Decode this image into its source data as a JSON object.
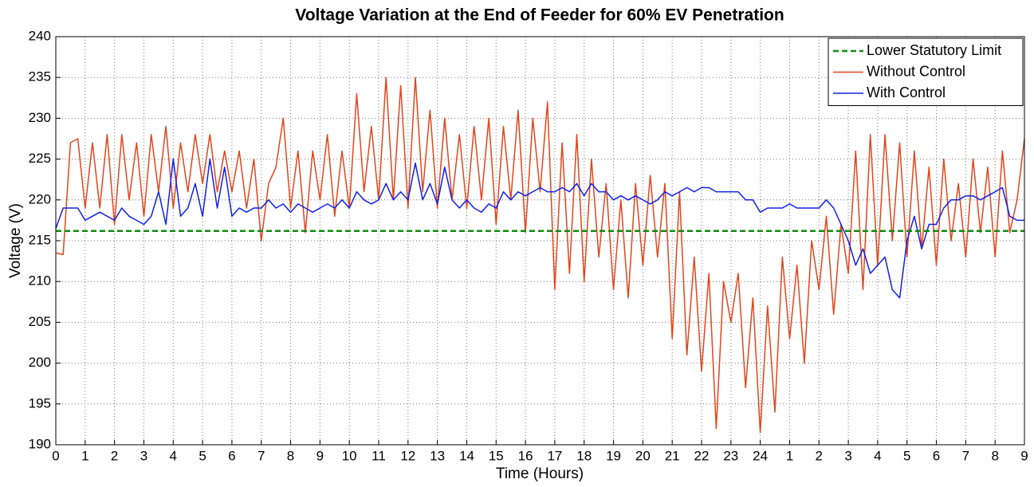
{
  "chart_data": {
    "type": "line",
    "title": "Voltage Variation at the End of Feeder for 60% EV Penetration",
    "x_label": "Time (Hours)",
    "y_label": "Voltage (V)",
    "xlim": [
      0,
      33
    ],
    "ylim": [
      190,
      240
    ],
    "xticks": [
      0,
      1,
      2,
      3,
      4,
      5,
      6,
      7,
      8,
      9,
      10,
      11,
      12,
      13,
      14,
      15,
      16,
      17,
      18,
      19,
      20,
      21,
      22,
      23,
      24,
      {
        "value": 25,
        "label": "1"
      },
      {
        "value": 26,
        "label": "2"
      },
      {
        "value": 27,
        "label": "3"
      },
      {
        "value": 28,
        "label": "4"
      },
      {
        "value": 29,
        "label": "5"
      },
      {
        "value": 30,
        "label": "6"
      },
      {
        "value": 31,
        "label": "7"
      },
      {
        "value": 32,
        "label": "8"
      },
      {
        "value": 33,
        "label": "9"
      }
    ],
    "yticks": [
      190,
      195,
      200,
      205,
      210,
      215,
      220,
      225,
      230,
      235,
      240
    ],
    "grid": true,
    "legend": "upper right",
    "reference_line": {
      "name": "Lower Statutory Limit",
      "color": "#108a10",
      "value": 216.2
    },
    "x": [
      0,
      0.25,
      0.5,
      0.75,
      1,
      1.25,
      1.5,
      1.75,
      2,
      2.25,
      2.5,
      2.75,
      3,
      3.25,
      3.5,
      3.75,
      4,
      4.25,
      4.5,
      4.75,
      5,
      5.25,
      5.5,
      5.75,
      6,
      6.25,
      6.5,
      6.75,
      7,
      7.25,
      7.5,
      7.75,
      8,
      8.25,
      8.5,
      8.75,
      9,
      9.25,
      9.5,
      9.75,
      10,
      10.25,
      10.5,
      10.75,
      11,
      11.25,
      11.5,
      11.75,
      12,
      12.25,
      12.5,
      12.75,
      13,
      13.25,
      13.5,
      13.75,
      14,
      14.25,
      14.5,
      14.75,
      15,
      15.25,
      15.5,
      15.75,
      16,
      16.25,
      16.5,
      16.75,
      17,
      17.25,
      17.5,
      17.75,
      18,
      18.25,
      18.5,
      18.75,
      19,
      19.25,
      19.5,
      19.75,
      20,
      20.25,
      20.5,
      20.75,
      21,
      21.25,
      21.5,
      21.75,
      22,
      22.25,
      22.5,
      22.75,
      23,
      23.25,
      23.5,
      23.75,
      24,
      24.25,
      24.5,
      24.75,
      25,
      25.25,
      25.5,
      25.75,
      26,
      26.25,
      26.5,
      26.75,
      27,
      27.25,
      27.5,
      27.75,
      28,
      28.25,
      28.5,
      28.75,
      29,
      29.25,
      29.5,
      29.75,
      30,
      30.25,
      30.5,
      30.75,
      31,
      31.25,
      31.5,
      31.75,
      32,
      32.25,
      32.5,
      32.75,
      33
    ],
    "series": [
      {
        "name": "Without Control",
        "color": "#e0461c",
        "values": [
          213.5,
          213.3,
          227,
          227.5,
          219,
          227,
          219,
          228,
          217,
          228,
          220,
          227,
          218,
          228,
          221,
          229,
          219,
          227,
          221,
          228,
          222,
          228,
          221,
          226,
          221,
          226,
          219,
          225,
          215,
          222,
          224,
          230,
          219,
          226,
          216,
          226,
          220,
          228,
          218,
          226,
          219,
          233,
          221,
          229,
          220,
          235,
          220,
          234,
          219,
          235,
          221,
          231,
          219,
          230,
          220,
          228,
          219,
          229,
          220,
          230,
          217,
          229,
          220,
          231,
          216,
          230,
          221,
          232,
          209,
          227,
          211,
          228,
          210,
          225,
          213,
          222,
          209,
          220,
          208,
          222,
          212,
          223,
          213,
          222,
          203,
          221,
          201,
          213,
          199,
          211,
          192,
          210,
          205,
          211,
          197,
          208,
          191.5,
          207,
          194,
          213,
          203,
          212,
          200,
          215,
          209,
          218,
          206,
          217,
          211,
          226,
          209,
          228,
          212,
          228,
          215,
          227,
          213,
          226,
          214,
          224,
          212,
          225,
          215,
          222,
          213,
          225,
          216,
          224,
          213,
          226,
          216,
          220,
          227.5
        ]
      },
      {
        "name": "With Control",
        "color": "#1020e8",
        "values": [
          216.5,
          219,
          219,
          219,
          217.5,
          218,
          218.5,
          218,
          217.5,
          219,
          218,
          217.5,
          217,
          218,
          221,
          217,
          225,
          218,
          219,
          222,
          218,
          225,
          219,
          224,
          218,
          219,
          218.5,
          219,
          219,
          220,
          219,
          219.5,
          218.5,
          219.5,
          219,
          218.5,
          219,
          219.5,
          219,
          220,
          219,
          221,
          220,
          219.5,
          220,
          222,
          220,
          221,
          220,
          224.5,
          220,
          222,
          219.5,
          224,
          220,
          219,
          220,
          219,
          218.5,
          219.5,
          219,
          221,
          220,
          221,
          220.5,
          221,
          221.5,
          221,
          221,
          221.5,
          221,
          222,
          220.5,
          222,
          221,
          221,
          220,
          220.5,
          220,
          220.5,
          220,
          219.5,
          220,
          221,
          220.5,
          221,
          221.5,
          221,
          221.5,
          221.5,
          221,
          221,
          221,
          221,
          220,
          220,
          218.5,
          219,
          219,
          219,
          219.5,
          219,
          219,
          219,
          219,
          220,
          219,
          217,
          215,
          212,
          214,
          211,
          212,
          213,
          209,
          208,
          215,
          218,
          214,
          217,
          217,
          219,
          220,
          220,
          220.5,
          220.5,
          220,
          220.5,
          221,
          221.5,
          218,
          217.5,
          217.5
        ]
      }
    ]
  }
}
